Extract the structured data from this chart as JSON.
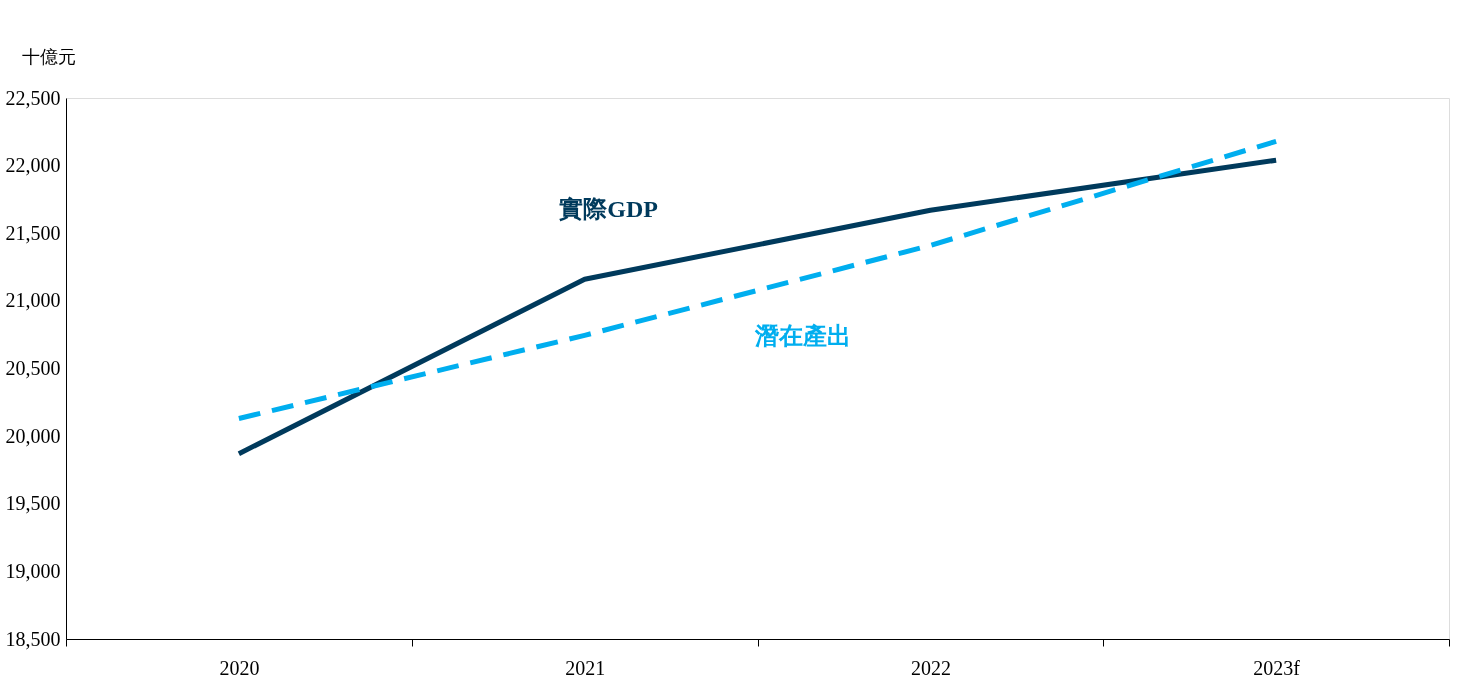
{
  "chart_data": {
    "type": "line",
    "ylabel": "十億元",
    "categories": [
      "2020",
      "2021",
      "2022",
      "2023f"
    ],
    "series": [
      {
        "name": "實際GDP",
        "color": "#003a5c",
        "values": [
          19870,
          21160,
          21670,
          22040
        ],
        "line_style": "solid"
      },
      {
        "name": "潛在產出",
        "color": "#00aeef",
        "values": [
          20130,
          20745,
          21410,
          22180
        ],
        "line_style": "dashed"
      }
    ],
    "ylim": [
      18500,
      22500
    ],
    "yticks": [
      {
        "value": 18500,
        "label": "18,500"
      },
      {
        "value": 19000,
        "label": "19,000"
      },
      {
        "value": 19500,
        "label": "19,500"
      },
      {
        "value": 20000,
        "label": "20,000"
      },
      {
        "value": 20500,
        "label": "20,500"
      },
      {
        "value": 21000,
        "label": "21,000"
      },
      {
        "value": 21500,
        "label": "21,500"
      },
      {
        "value": 22000,
        "label": "22,000"
      },
      {
        "value": 22500,
        "label": "22,500"
      }
    ],
    "grid": false,
    "marker": "none"
  }
}
